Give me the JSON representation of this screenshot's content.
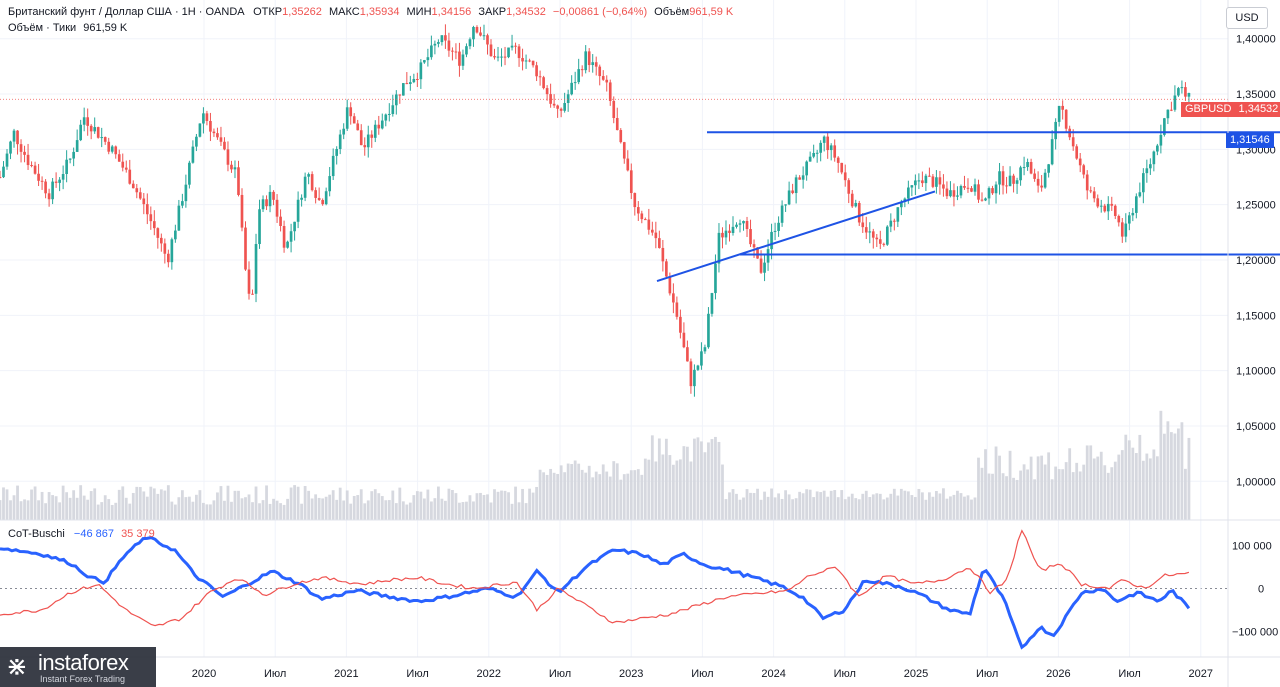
{
  "header": {
    "symbol": "Британский фунт / Доллар США · 1Н · OANDA",
    "open_label": "ОТКР",
    "open": "1,35262",
    "high_label": "МАКС",
    "high": "1,35934",
    "low_label": "МИН",
    "low": "1,34156",
    "close_label": "ЗАКР",
    "close": "1,34532",
    "change": "−0,00861 (−0,64%)",
    "volume_label": "Объём",
    "volume": "961,59 K",
    "volume_line_label": "Объём · Тики",
    "volume_line_value": "961,59 K"
  },
  "currency_button": "USD",
  "price_tag": {
    "symbol": "GBPUSD",
    "value": "1,34532",
    "color": "#ef5350"
  },
  "level_tag": {
    "value": "1,31546",
    "color": "#1e53e5"
  },
  "indicator": {
    "name": "CoT-Buschi",
    "value_blue": "−46 867",
    "value_red": "35 379"
  },
  "logo": {
    "name": "instaforex",
    "tagline": "Instant Forex Trading"
  },
  "chart_data": [
    {
      "type": "candlestick",
      "title": "Британский фунт / Доллар США · 1Н · OANDA",
      "y_axis": {
        "ticks": [
          "1,40000",
          "1,35000",
          "1,30000",
          "1,25000",
          "1,20000",
          "1,15000",
          "1,10000",
          "1,05000",
          "1,00000"
        ],
        "ylim": [
          0.965,
          1.435
        ]
      },
      "x_axis": {
        "ticks": [
          "2020",
          "Июл",
          "2021",
          "Июл",
          "2022",
          "Июл",
          "2023",
          "Июл",
          "2024",
          "Июл",
          "2025",
          "Июл",
          "2026",
          "Июл",
          "2027"
        ]
      },
      "last_price": 1.34532,
      "anchors": [
        [
          2019.0,
          1.275
        ],
        [
          2019.1,
          1.315
        ],
        [
          2019.2,
          1.29
        ],
        [
          2019.35,
          1.26
        ],
        [
          2019.5,
          1.29
        ],
        [
          2019.6,
          1.33
        ],
        [
          2019.8,
          1.3
        ],
        [
          2019.95,
          1.27
        ],
        [
          2020.1,
          1.23
        ],
        [
          2020.2,
          1.2
        ],
        [
          2020.35,
          1.28
        ],
        [
          2020.45,
          1.335
        ],
        [
          2020.55,
          1.31
        ],
        [
          2020.7,
          1.275
        ],
        [
          2020.75,
          1.2
        ],
        [
          2020.8,
          1.15
        ],
        [
          2020.85,
          1.245
        ],
        [
          2020.95,
          1.26
        ],
        [
          2021.05,
          1.21
        ],
        [
          2021.2,
          1.28
        ],
        [
          2021.3,
          1.25
        ],
        [
          2021.5,
          1.34
        ],
        [
          2021.6,
          1.3
        ],
        [
          2021.75,
          1.33
        ],
        [
          2021.9,
          1.36
        ],
        [
          2022.0,
          1.37
        ],
        [
          2022.15,
          1.4
        ],
        [
          2022.3,
          1.38
        ],
        [
          2022.4,
          1.415
        ],
        [
          2022.55,
          1.38
        ],
        [
          2022.7,
          1.39
        ],
        [
          2022.85,
          1.37
        ],
        [
          2023.0,
          1.33
        ],
        [
          2023.2,
          1.385
        ],
        [
          2023.35,
          1.355
        ],
        [
          2023.45,
          1.3
        ],
        [
          2023.55,
          1.25
        ],
        [
          2023.7,
          1.22
        ],
        [
          2023.85,
          1.15
        ],
        [
          2023.95,
          1.09
        ],
        [
          2024.05,
          1.12
        ],
        [
          2024.15,
          1.22
        ],
        [
          2024.3,
          1.24
        ],
        [
          2024.45,
          1.19
        ],
        [
          2024.55,
          1.23
        ],
        [
          2024.7,
          1.27
        ],
        [
          2024.85,
          1.295
        ],
        [
          2024.9,
          1.31
        ],
        [
          2025.0,
          1.29
        ],
        [
          2025.15,
          1.24
        ],
        [
          2025.3,
          1.21
        ],
        [
          2025.45,
          1.25
        ],
        [
          2025.6,
          1.275
        ],
        [
          2025.7,
          1.27
        ],
        [
          2025.8,
          1.26
        ],
        [
          2025.95,
          1.27
        ],
        [
          2026.05,
          1.25
        ],
        [
          2026.15,
          1.275
        ],
        [
          2026.25,
          1.27
        ],
        [
          2026.35,
          1.29
        ],
        [
          2026.45,
          1.26
        ],
        [
          2026.55,
          1.31
        ],
        [
          2026.6,
          1.34
        ],
        [
          2026.7,
          1.3
        ],
        [
          2026.8,
          1.26
        ],
        [
          2026.9,
          1.25
        ],
        [
          2027.0,
          1.24
        ],
        [
          2027.05,
          1.22
        ],
        [
          2027.15,
          1.26
        ],
        [
          2027.25,
          1.29
        ],
        [
          2027.35,
          1.33
        ],
        [
          2027.45,
          1.355
        ],
        [
          2027.52,
          1.345
        ]
      ],
      "levels": [
        {
          "price": 1.31546,
          "from": "Июл",
          "style": "horizontal",
          "color": "#1e53e5"
        },
        {
          "price": 1.205,
          "from": "2024",
          "style": "horizontal",
          "color": "#1e53e5"
        }
      ],
      "trendline": {
        "from": [
          2024.0,
          1.18
        ],
        "to": [
          2026.97,
          1.262
        ],
        "color": "#1e53e5"
      },
      "volume": {
        "name": "Объём · Тики"
      }
    },
    {
      "type": "line",
      "title": "CoT-Buschi",
      "y_axis": {
        "ticks": [
          "100 000",
          "0",
          "−100 000"
        ],
        "ylim": [
          -160000,
          155000
        ]
      },
      "series": [
        {
          "name": "",
          "color": "#2962ff",
          "anchors": [
            [
              2019,
              95000
            ],
            [
              2019.3,
              80000
            ],
            [
              2019.5,
              60000
            ],
            [
              2019.65,
              25000
            ],
            [
              2019.75,
              15000
            ],
            [
              2019.9,
              80000
            ],
            [
              2020.05,
              120000
            ],
            [
              2020.25,
              90000
            ],
            [
              2020.4,
              30000
            ],
            [
              2020.6,
              -20000
            ],
            [
              2020.8,
              15000
            ],
            [
              2020.95,
              40000
            ],
            [
              2021.15,
              10000
            ],
            [
              2021.3,
              -25000
            ],
            [
              2021.55,
              -5000
            ],
            [
              2021.8,
              -20000
            ],
            [
              2022.0,
              -30000
            ],
            [
              2022.2,
              -20000
            ],
            [
              2022.35,
              -10000
            ],
            [
              2022.5,
              0
            ],
            [
              2022.7,
              -20000
            ],
            [
              2022.85,
              40000
            ],
            [
              2023.0,
              -10000
            ],
            [
              2023.2,
              50000
            ],
            [
              2023.4,
              90000
            ],
            [
              2023.6,
              80000
            ],
            [
              2023.75,
              55000
            ],
            [
              2023.9,
              80000
            ],
            [
              2024.05,
              55000
            ],
            [
              2024.25,
              40000
            ],
            [
              2024.45,
              20000
            ],
            [
              2024.6,
              5000
            ],
            [
              2024.75,
              -20000
            ],
            [
              2024.9,
              -70000
            ],
            [
              2025.05,
              -50000
            ],
            [
              2025.2,
              20000
            ],
            [
              2025.45,
              5000
            ],
            [
              2025.6,
              -15000
            ],
            [
              2025.8,
              -50000
            ],
            [
              2025.95,
              -60000
            ],
            [
              2026.05,
              50000
            ],
            [
              2026.2,
              -30000
            ],
            [
              2026.32,
              -140000
            ],
            [
              2026.45,
              -90000
            ],
            [
              2026.55,
              -110000
            ],
            [
              2026.75,
              -10000
            ],
            [
              2026.9,
              0
            ],
            [
              2027.0,
              -30000
            ],
            [
              2027.15,
              -10000
            ],
            [
              2027.3,
              -30000
            ],
            [
              2027.4,
              -5000
            ],
            [
              2027.52,
              -46867
            ]
          ]
        },
        {
          "name": "",
          "color": "#ef5350",
          "anchors": [
            [
              2019,
              -60000
            ],
            [
              2019.3,
              -50000
            ],
            [
              2019.5,
              -10000
            ],
            [
              2019.7,
              10000
            ],
            [
              2019.9,
              -50000
            ],
            [
              2020.1,
              -90000
            ],
            [
              2020.3,
              -70000
            ],
            [
              2020.5,
              -10000
            ],
            [
              2020.7,
              25000
            ],
            [
              2020.9,
              -15000
            ],
            [
              2021.1,
              10000
            ],
            [
              2021.3,
              25000
            ],
            [
              2021.6,
              10000
            ],
            [
              2021.8,
              20000
            ],
            [
              2022.0,
              25000
            ],
            [
              2022.2,
              10000
            ],
            [
              2022.4,
              0
            ],
            [
              2022.7,
              15000
            ],
            [
              2022.85,
              -50000
            ],
            [
              2023.0,
              0
            ],
            [
              2023.2,
              -40000
            ],
            [
              2023.4,
              -80000
            ],
            [
              2023.6,
              -70000
            ],
            [
              2023.8,
              -60000
            ],
            [
              2024.0,
              -40000
            ],
            [
              2024.2,
              -20000
            ],
            [
              2024.5,
              -10000
            ],
            [
              2024.65,
              -5000
            ],
            [
              2024.8,
              30000
            ],
            [
              2025.0,
              50000
            ],
            [
              2025.15,
              -20000
            ],
            [
              2025.35,
              30000
            ],
            [
              2025.55,
              10000
            ],
            [
              2025.75,
              20000
            ],
            [
              2025.95,
              50000
            ],
            [
              2026.1,
              -10000
            ],
            [
              2026.22,
              20000
            ],
            [
              2026.32,
              140000
            ],
            [
              2026.45,
              40000
            ],
            [
              2026.6,
              60000
            ],
            [
              2026.75,
              10000
            ],
            [
              2026.95,
              0
            ],
            [
              2027.05,
              20000
            ],
            [
              2027.2,
              0
            ],
            [
              2027.35,
              30000
            ],
            [
              2027.52,
              35379
            ]
          ]
        }
      ]
    }
  ]
}
